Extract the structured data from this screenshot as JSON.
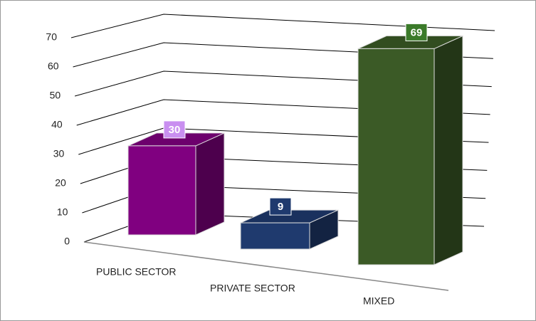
{
  "chart_data": {
    "type": "bar3d",
    "categories": [
      "PUBLIC SECTOR",
      "PRIVATE SECTOR",
      "MIXED"
    ],
    "values": [
      30,
      9,
      69
    ],
    "colors": [
      "#800080",
      "#1f3a6e",
      "#3b5a26"
    ],
    "label_colors": [
      "#c98ff0",
      "#1f3a6e",
      "#3b7a2a"
    ],
    "ylim": [
      0,
      70
    ],
    "yticks": [
      0,
      10,
      20,
      30,
      40,
      50,
      60,
      70
    ],
    "grid": true
  }
}
